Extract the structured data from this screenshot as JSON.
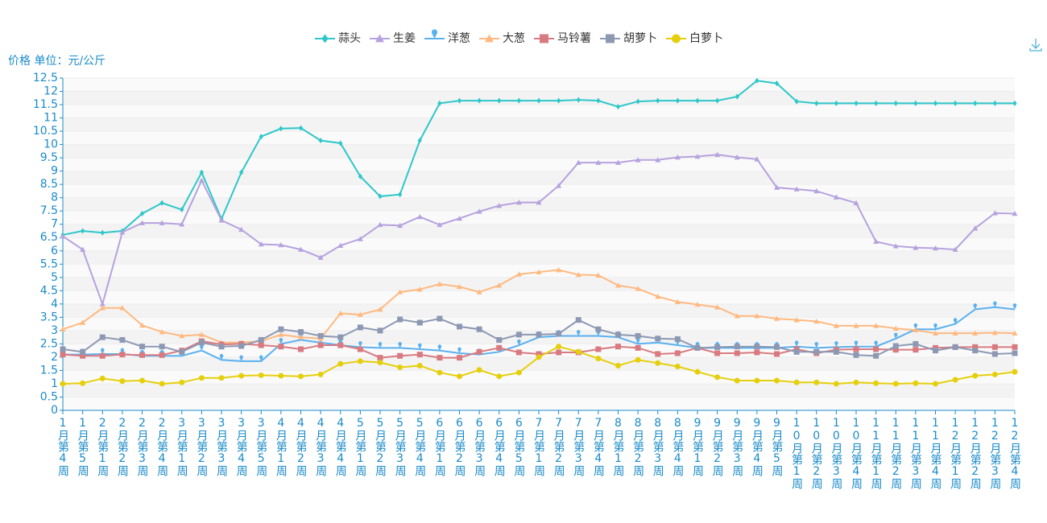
{
  "chart_data": {
    "type": "line",
    "y_axis_label": "价格 单位：元/公斤",
    "categories": [
      "1月第4周",
      "1月第5周",
      "2月第1周",
      "2月第2周",
      "2月第3周",
      "2月第4周",
      "3月第1周",
      "3月第2周",
      "3月第3周",
      "3月第4周",
      "3月第5周",
      "4月第1周",
      "4月第2周",
      "4月第3周",
      "4月第4周",
      "5月第1周",
      "5月第2周",
      "5月第3周",
      "5月第4周",
      "6月第1周",
      "6月第2周",
      "6月第3周",
      "6月第4周",
      "6月第5周",
      "7月第1周",
      "7月第2周",
      "7月第3周",
      "7月第4周",
      "8月第1周",
      "8月第2周",
      "8月第3周",
      "8月第4周",
      "9月第1周",
      "9月第2周",
      "9月第3周",
      "9月第4周",
      "9月第5周",
      "10月第1周",
      "10月第2周",
      "10月第3周",
      "10月第4周",
      "11月第1周",
      "11月第2周",
      "11月第3周",
      "11月第4周",
      "12月第1周",
      "12月第2周",
      "12月第3周",
      "12月第4周"
    ],
    "series": [
      {
        "name": "蒜头",
        "color": "#2ec7c9",
        "marker": "diamond",
        "values": [
          6.6,
          6.75,
          6.68,
          6.75,
          7.4,
          7.8,
          7.55,
          8.95,
          7.2,
          8.95,
          10.3,
          10.6,
          10.62,
          10.15,
          10.05,
          8.8,
          8.05,
          8.12,
          10.15,
          11.55,
          11.65,
          11.65,
          11.65,
          11.65,
          11.65,
          11.65,
          11.68,
          11.65,
          11.42,
          11.62,
          11.65,
          11.65,
          11.65,
          11.65,
          11.8,
          12.4,
          12.3,
          11.62,
          11.55,
          11.55,
          11.55,
          11.55,
          11.55,
          11.55,
          11.55,
          11.55,
          11.55,
          11.55,
          11.55
        ]
      },
      {
        "name": "生姜",
        "color": "#b6a2de",
        "marker": "triangle",
        "values": [
          6.55,
          6.05,
          4.0,
          6.7,
          7.05,
          7.05,
          7.0,
          8.65,
          7.15,
          6.8,
          6.25,
          6.22,
          6.05,
          5.75,
          6.2,
          6.45,
          6.98,
          6.95,
          7.28,
          6.98,
          7.22,
          7.48,
          7.7,
          7.82,
          7.82,
          8.45,
          9.32,
          9.32,
          9.32,
          9.42,
          9.42,
          9.52,
          9.55,
          9.62,
          9.52,
          9.45,
          8.38,
          8.32,
          8.25,
          8.02,
          7.8,
          6.35,
          6.18,
          6.12,
          6.1,
          6.05,
          6.85,
          7.42,
          7.4
        ]
      },
      {
        "name": "洋葱",
        "color": "#5ab1ef",
        "marker": "pin",
        "values": [
          2.1,
          2.1,
          2.12,
          2.12,
          2.05,
          2.05,
          2.05,
          2.25,
          1.9,
          1.85,
          1.85,
          2.5,
          2.65,
          2.55,
          2.45,
          2.38,
          2.35,
          2.35,
          2.3,
          2.25,
          2.15,
          2.1,
          2.2,
          2.45,
          2.75,
          2.8,
          2.8,
          2.8,
          2.75,
          2.5,
          2.55,
          2.45,
          2.35,
          2.35,
          2.35,
          2.35,
          2.35,
          2.4,
          2.35,
          2.38,
          2.4,
          2.4,
          2.7,
          3.05,
          3.05,
          3.25,
          3.8,
          3.88,
          3.8
        ]
      },
      {
        "name": "大葱",
        "color": "#ffb980",
        "marker": "triangle",
        "values": [
          3.05,
          3.3,
          3.85,
          3.85,
          3.2,
          2.95,
          2.8,
          2.85,
          2.55,
          2.55,
          2.6,
          2.85,
          2.75,
          2.7,
          3.65,
          3.6,
          3.8,
          4.45,
          4.55,
          4.75,
          4.65,
          4.45,
          4.7,
          5.12,
          5.2,
          5.28,
          5.1,
          5.08,
          4.7,
          4.58,
          4.28,
          4.08,
          3.98,
          3.88,
          3.55,
          3.55,
          3.45,
          3.4,
          3.35,
          3.18,
          3.18,
          3.18,
          3.08,
          3.02,
          2.9,
          2.9,
          2.9,
          2.92,
          2.9
        ]
      },
      {
        "name": "马铃薯",
        "color": "#d87a80",
        "marker": "rect",
        "values": [
          2.1,
          2.05,
          2.05,
          2.1,
          2.08,
          2.08,
          2.25,
          2.6,
          2.48,
          2.5,
          2.45,
          2.4,
          2.3,
          2.45,
          2.45,
          2.3,
          1.98,
          2.05,
          2.1,
          1.98,
          1.98,
          2.2,
          2.35,
          2.18,
          2.12,
          2.18,
          2.18,
          2.3,
          2.4,
          2.35,
          2.12,
          2.15,
          2.35,
          2.15,
          2.15,
          2.18,
          2.12,
          2.3,
          2.15,
          2.28,
          2.3,
          2.3,
          2.28,
          2.28,
          2.35,
          2.38,
          2.38,
          2.38,
          2.38
        ]
      },
      {
        "name": "胡萝卜",
        "color": "#8d98b3",
        "marker": "rect",
        "values": [
          2.3,
          2.2,
          2.75,
          2.65,
          2.4,
          2.4,
          2.2,
          2.55,
          2.4,
          2.42,
          2.65,
          3.05,
          2.95,
          2.8,
          2.75,
          3.12,
          3.0,
          3.42,
          3.3,
          3.45,
          3.15,
          3.05,
          2.65,
          2.85,
          2.85,
          2.88,
          3.4,
          3.05,
          2.85,
          2.8,
          2.7,
          2.68,
          2.35,
          2.38,
          2.4,
          2.4,
          2.38,
          2.2,
          2.2,
          2.2,
          2.08,
          2.05,
          2.42,
          2.5,
          2.25,
          2.38,
          2.25,
          2.12,
          2.15
        ]
      },
      {
        "name": "白萝卜",
        "color": "#e5cf0d",
        "marker": "circle",
        "values": [
          1.0,
          1.02,
          1.2,
          1.1,
          1.12,
          1.0,
          1.05,
          1.22,
          1.22,
          1.3,
          1.32,
          1.3,
          1.28,
          1.35,
          1.75,
          1.85,
          1.8,
          1.62,
          1.68,
          1.42,
          1.28,
          1.52,
          1.28,
          1.42,
          2.0,
          2.4,
          2.2,
          1.95,
          1.68,
          1.9,
          1.78,
          1.65,
          1.45,
          1.25,
          1.12,
          1.12,
          1.12,
          1.05,
          1.05,
          1.0,
          1.05,
          1.02,
          1.0,
          1.02,
          1.0,
          1.15,
          1.3,
          1.35,
          1.45
        ]
      }
    ],
    "ylim": [
      0,
      12.5
    ],
    "yticks": [
      0,
      0.5,
      1,
      1.5,
      2,
      2.5,
      3,
      3.5,
      4,
      4.5,
      5,
      5.5,
      6,
      6.5,
      7,
      7.5,
      8,
      8.5,
      9,
      9.5,
      10,
      10.5,
      11,
      11.5,
      12,
      12.5
    ],
    "grid": true
  }
}
